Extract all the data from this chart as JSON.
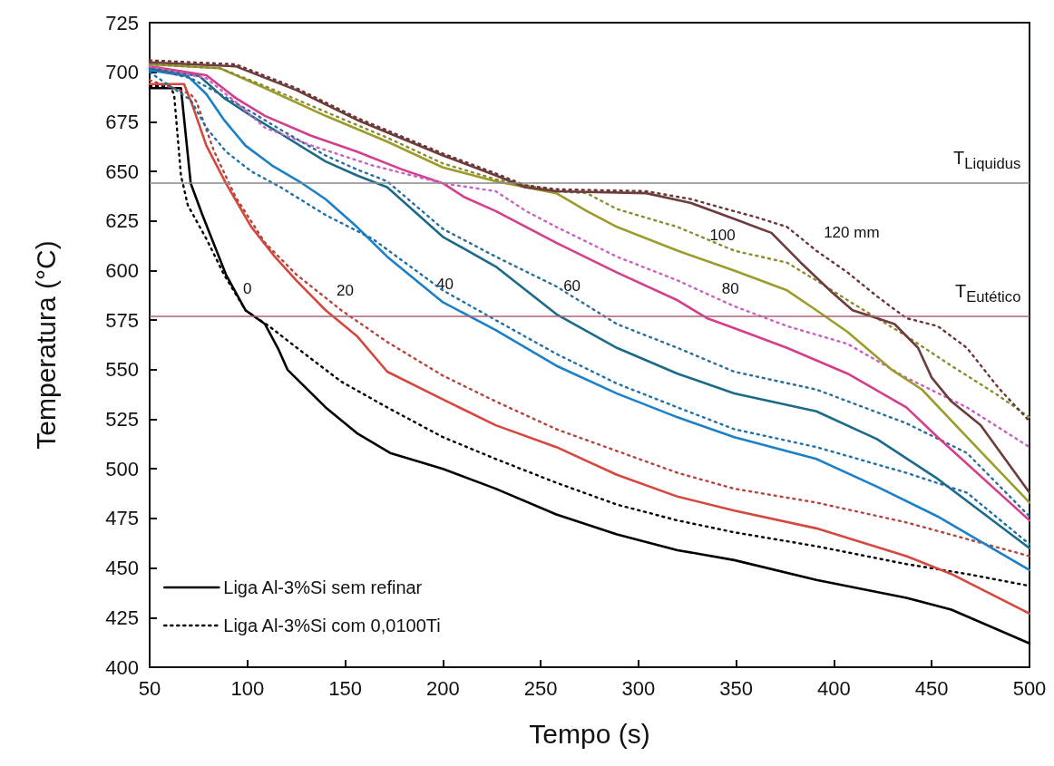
{
  "chart_data": {
    "type": "line",
    "xlabel": "Tempo (s)",
    "ylabel": "Temperatura (°C)",
    "xlim": [
      50,
      500
    ],
    "xticks": [
      50,
      100,
      150,
      200,
      250,
      300,
      350,
      400,
      450,
      500
    ],
    "ylim": [
      400,
      725
    ],
    "yticks": [
      400,
      425,
      450,
      475,
      500,
      525,
      550,
      575,
      600,
      625,
      650,
      675,
      700,
      725
    ],
    "grid": false,
    "legend": "bottom left",
    "marker": "none",
    "ref_lines": [
      {
        "axis": "y",
        "value": 644,
        "label": "T$_{Liquidus}$",
        "color": "#8a8a8a"
      },
      {
        "axis": "y",
        "value": 577,
        "label": "T$_{Eutético}$",
        "color": "#b0607a"
      }
    ],
    "annotations": [
      "0",
      "20",
      "40",
      "60",
      "80",
      "100",
      "120 mm"
    ],
    "series": [
      {
        "name": "Liga Al-3%Si sem refinar",
        "color": "#000000",
        "line_style": "solid",
        "x": [
          50,
          66,
          71,
          77,
          89,
          99,
          109,
          116,
          120.5,
          140,
          156,
          173,
          200,
          227,
          258,
          289,
          320,
          349,
          391,
          437,
          460,
          500
        ],
        "values": [
          692,
          692,
          644,
          628,
          598,
          580,
          573,
          560,
          550,
          531,
          518,
          508,
          500,
          490,
          477,
          467,
          459,
          454,
          444,
          435,
          429,
          412
        ]
      },
      {
        "name": "Liga Al-3%Si com 0,0100Ti",
        "color": "#000000",
        "line_style": "dotted",
        "x": [
          50,
          60,
          62.5,
          66,
          69.5,
          79,
          88,
          99,
          111,
          128,
          148,
          171.5,
          200,
          227,
          258,
          289,
          320,
          349,
          391,
          437,
          468,
          500
        ],
        "values": [
          693,
          693,
          689,
          648,
          633,
          616,
          598,
          580,
          572,
          559,
          544,
          531,
          516,
          505,
          493,
          482,
          474,
          468,
          461,
          452,
          447,
          441
        ]
      },
      {
        "color": "#d4483e",
        "line_style": "solid",
        "x": [
          50,
          67.6,
          72,
          79,
          89,
          102,
          114,
          125,
          140,
          156,
          171.5,
          200,
          227,
          258,
          289,
          320,
          349,
          391,
          437,
          460,
          500
        ],
        "values": [
          694,
          694,
          683,
          663,
          644,
          622,
          607,
          595,
          580,
          567,
          549,
          535,
          522,
          511,
          497,
          486,
          479,
          470,
          456,
          447,
          427
        ]
      },
      {
        "color": "#b4453c",
        "line_style": "dotted",
        "x": [
          50,
          71,
          74,
          83,
          94,
          109,
          125,
          148,
          171.5,
          200,
          227,
          258,
          289,
          320,
          349,
          391,
          437,
          500
        ],
        "values": [
          696,
          689,
          685,
          660,
          637,
          614,
          598,
          580,
          564,
          547,
          534,
          520,
          509,
          498,
          490,
          483,
          473,
          456
        ]
      },
      {
        "color": "#1c80c8",
        "line_style": "solid",
        "x": [
          50,
          69.5,
          79,
          88,
          99,
          112.6,
          128,
          140,
          156,
          171.5,
          200,
          227,
          258,
          289,
          320,
          349,
          391,
          422,
          453,
          500
        ],
        "values": [
          701,
          698,
          689,
          676,
          663,
          653,
          644,
          636,
          622,
          607,
          584,
          570,
          552,
          538,
          526,
          516,
          505,
          491,
          476,
          449
        ]
      },
      {
        "color": "#1f70a8",
        "line_style": "dotted",
        "x": [
          50,
          71,
          79,
          89,
          102,
          117,
          140,
          164,
          200,
          227,
          258,
          289,
          320,
          349,
          391,
          437,
          468,
          500
        ],
        "values": [
          700,
          686,
          672,
          660,
          650,
          642,
          628,
          616,
          590,
          575,
          558,
          543,
          531,
          520,
          511,
          498,
          488,
          462
        ]
      },
      {
        "color": "#1b6a8a",
        "line_style": "solid",
        "x": [
          50,
          75.5,
          88,
          102,
          117,
          140,
          156,
          171.5,
          200,
          227,
          258,
          289,
          320,
          349,
          391,
          422,
          453,
          500
        ],
        "values": [
          702,
          698,
          687,
          678,
          669,
          655,
          648,
          642,
          617,
          602,
          578,
          561,
          548,
          538,
          529,
          515,
          495,
          460
        ]
      },
      {
        "color": "#2a6e9a",
        "line_style": "dotted",
        "x": [
          50,
          71,
          86,
          102,
          117,
          140,
          156,
          171.5,
          200,
          227,
          258,
          289,
          320,
          349,
          391,
          437,
          468,
          500
        ],
        "values": [
          702,
          697,
          689,
          680,
          671,
          658,
          651,
          645,
          621,
          607,
          592,
          573,
          561,
          549,
          540,
          523,
          508,
          476
        ]
      },
      {
        "color": "#d43e8c",
        "line_style": "solid",
        "x": [
          50,
          79,
          94,
          109,
          132.6,
          156,
          179,
          200,
          211,
          227,
          258,
          289,
          320,
          335,
          349,
          376,
          407,
          437,
          453,
          500
        ],
        "values": [
          703,
          698.5,
          687,
          678,
          668,
          660,
          651,
          644,
          637,
          630,
          614,
          599,
          585,
          576,
          571,
          561,
          548,
          531,
          516,
          474
        ]
      },
      {
        "color": "#c862c2",
        "line_style": "dotted",
        "x": [
          50,
          79,
          94,
          109,
          133,
          164,
          200,
          227,
          242.5,
          258,
          289,
          320,
          349,
          376,
          407,
          437,
          468,
          500
        ],
        "values": [
          703,
          697,
          685,
          672,
          663,
          653,
          644,
          640,
          630,
          622,
          607,
          595,
          582,
          572,
          563,
          546,
          531,
          511
        ]
      },
      {
        "color": "#9c9c2c",
        "line_style": "solid",
        "x": [
          50,
          86,
          109,
          140,
          171.5,
          200,
          227,
          258,
          273.6,
          289,
          320,
          349,
          376,
          391,
          407,
          429.5,
          445,
          468,
          500
        ],
        "values": [
          704,
          702,
          692,
          678,
          665,
          652,
          645,
          639,
          630,
          622,
          610,
          600,
          590,
          580,
          569,
          550,
          540,
          516,
          483
        ]
      },
      {
        "color": "#8a8a30",
        "line_style": "dotted",
        "x": [
          50,
          86,
          109,
          140,
          171.5,
          200,
          227,
          258,
          273.6,
          289,
          320,
          349,
          376,
          391,
          407,
          422,
          437,
          460,
          484,
          500
        ],
        "values": [
          704,
          702,
          693,
          680,
          667,
          654,
          646,
          640,
          639,
          631,
          622,
          610,
          604,
          595,
          585,
          576,
          567,
          552,
          537,
          526
        ]
      },
      {
        "color": "#6e3c3c",
        "line_style": "solid",
        "x": [
          50,
          94,
          125,
          156,
          200,
          227,
          242,
          258,
          304,
          327,
          349,
          368,
          383,
          399,
          409.5,
          422,
          431,
          443,
          450,
          460,
          475,
          500
        ],
        "values": [
          705,
          703,
          691,
          676,
          658,
          648,
          642,
          640,
          639,
          634,
          626,
          619,
          604,
          589,
          580,
          576,
          573,
          561,
          546,
          534,
          522,
          488
        ]
      },
      {
        "color": "#6b3434",
        "line_style": "dotted",
        "x": [
          50,
          94,
          125,
          156,
          200,
          227,
          242,
          258,
          304,
          327,
          345,
          360,
          376,
          391,
          407,
          422,
          437,
          453,
          468,
          484,
          500
        ],
        "values": [
          706,
          704,
          692,
          677,
          659,
          649,
          643,
          641,
          640,
          636,
          631,
          627,
          622,
          610,
          599,
          587,
          576,
          572,
          561,
          541,
          524
        ]
      }
    ]
  }
}
